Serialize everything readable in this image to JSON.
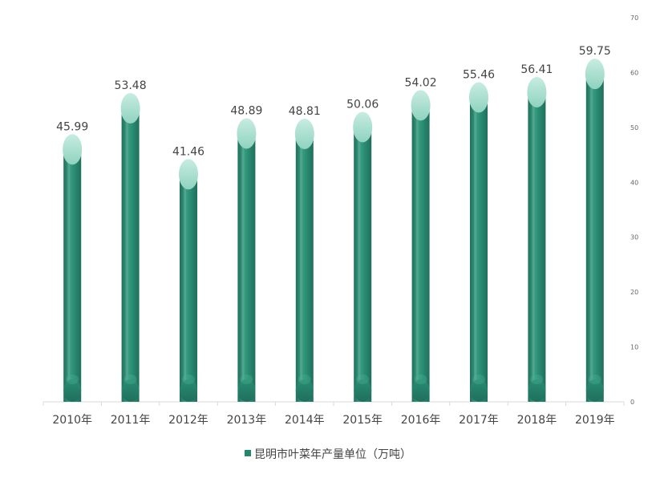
{
  "chart_data": {
    "type": "bar",
    "categories": [
      "2010年",
      "2011年",
      "2012年",
      "2013年",
      "2014年",
      "2015年",
      "2016年",
      "2017年",
      "2018年",
      "2019年"
    ],
    "series": [
      {
        "name": "昆明市叶菜年产量单位（万吨）",
        "values": [
          45.99,
          53.48,
          41.46,
          48.89,
          48.81,
          50.06,
          54.02,
          55.46,
          56.41,
          59.75
        ],
        "data_labels": [
          "45.99",
          "53.48",
          "41.46",
          "48.89",
          "48.81",
          "50.06",
          "54.02",
          "55.46",
          "56.41",
          "59.75"
        ]
      }
    ],
    "y_axis": {
      "position": "right",
      "ylim": [
        0,
        70
      ],
      "ticks": [
        "0",
        "10",
        "20",
        "30",
        "40",
        "50",
        "60",
        "70"
      ]
    },
    "grid": false,
    "legend": "bottom-center",
    "colors": {
      "bar_dark": "#1f6f5c",
      "bar_mid": "#2a8d73",
      "bar_light": "#3a9e82",
      "cap_top": "#c8ece1",
      "cap_bottom": "#8fd3bf",
      "legend_swatch": "#23876e",
      "axis": "#d9d9d9"
    }
  }
}
